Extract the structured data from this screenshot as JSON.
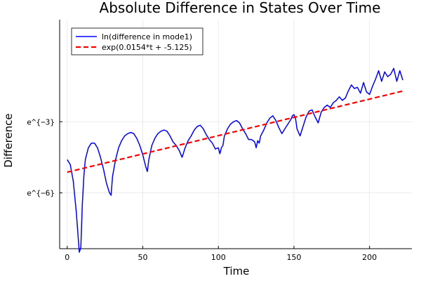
{
  "chart_data": {
    "type": "line",
    "title": "Absolute Difference in States Over Time",
    "xlabel": "Time",
    "ylabel": "Difference",
    "y_scale": "natural log",
    "xlim": [
      -5,
      228
    ],
    "ylim": [
      -8.35,
      1.3
    ],
    "x_ticks": [
      {
        "value": 0,
        "label": "0"
      },
      {
        "value": 50,
        "label": "50"
      },
      {
        "value": 100,
        "label": "100"
      },
      {
        "value": 150,
        "label": "150"
      },
      {
        "value": 200,
        "label": "200"
      }
    ],
    "y_ticks": [
      {
        "value": -3,
        "label": "e^{−3}"
      },
      {
        "value": -6,
        "label": "e^{−6}"
      }
    ],
    "grid": true,
    "legend_position": "top-left",
    "series": [
      {
        "name": "ln(difference in mode1)",
        "color": "#0000ff",
        "style": "solid",
        "x": [
          0,
          2,
          4,
          6,
          8,
          9,
          10,
          11,
          12,
          14,
          16,
          18,
          20,
          22,
          24,
          26,
          28,
          29,
          30,
          32,
          34,
          36,
          38,
          40,
          42,
          44,
          46,
          48,
          50,
          52,
          53,
          54,
          56,
          58,
          60,
          62,
          64,
          66,
          68,
          70,
          72,
          74,
          76,
          77,
          78,
          80,
          82,
          84,
          86,
          88,
          90,
          92,
          94,
          96,
          98,
          100,
          101,
          102,
          103,
          104,
          106,
          108,
          110,
          112,
          114,
          116,
          118,
          120,
          122,
          124,
          125,
          126,
          127,
          128,
          130,
          132,
          134,
          136,
          138,
          140,
          142,
          144,
          146,
          148,
          149,
          150,
          151,
          152,
          154,
          156,
          158,
          160,
          162,
          164,
          166,
          168,
          170,
          172,
          174,
          176,
          178,
          180,
          182,
          184,
          186,
          188,
          190,
          192,
          194,
          196,
          198,
          200,
          202,
          204,
          206,
          208,
          210,
          212,
          214,
          216,
          218,
          220,
          222
        ],
        "values": [
          -4.6,
          -4.8,
          -5.5,
          -6.8,
          -8.5,
          -8.3,
          -6.5,
          -5.3,
          -4.6,
          -4.1,
          -3.9,
          -3.9,
          -4.1,
          -4.5,
          -5.0,
          -5.6,
          -6.0,
          -6.1,
          -5.3,
          -4.6,
          -4.1,
          -3.8,
          -3.6,
          -3.5,
          -3.45,
          -3.5,
          -3.7,
          -4.0,
          -4.4,
          -4.9,
          -5.1,
          -4.6,
          -4.0,
          -3.7,
          -3.5,
          -3.4,
          -3.35,
          -3.4,
          -3.6,
          -3.85,
          -4.0,
          -4.2,
          -4.5,
          -4.3,
          -4.1,
          -3.8,
          -3.6,
          -3.35,
          -3.2,
          -3.15,
          -3.3,
          -3.55,
          -3.75,
          -3.9,
          -4.15,
          -4.1,
          -4.35,
          -4.1,
          -4.0,
          -3.6,
          -3.3,
          -3.1,
          -3.0,
          -2.95,
          -3.05,
          -3.3,
          -3.5,
          -3.75,
          -3.75,
          -3.85,
          -4.1,
          -3.8,
          -3.9,
          -3.6,
          -3.35,
          -3.05,
          -2.85,
          -2.75,
          -2.95,
          -3.25,
          -3.5,
          -3.3,
          -3.1,
          -2.9,
          -2.75,
          -2.7,
          -2.85,
          -3.3,
          -3.6,
          -3.2,
          -2.8,
          -2.55,
          -2.5,
          -2.8,
          -3.05,
          -2.6,
          -2.4,
          -2.3,
          -2.4,
          -2.2,
          -2.1,
          -1.95,
          -2.1,
          -2.0,
          -1.7,
          -1.45,
          -1.6,
          -1.55,
          -1.8,
          -1.35,
          -1.75,
          -1.85,
          -1.5,
          -1.2,
          -0.85,
          -1.3,
          -0.9,
          -1.1,
          -1.0,
          -0.75,
          -1.3,
          -0.85,
          -1.25
        ]
      },
      {
        "name": "exp(0.0154*t + -5.125)",
        "color": "#ff0000",
        "style": "dashed",
        "slope": 0.0154,
        "intercept": -5.125,
        "x_range": [
          0,
          222
        ]
      }
    ]
  }
}
